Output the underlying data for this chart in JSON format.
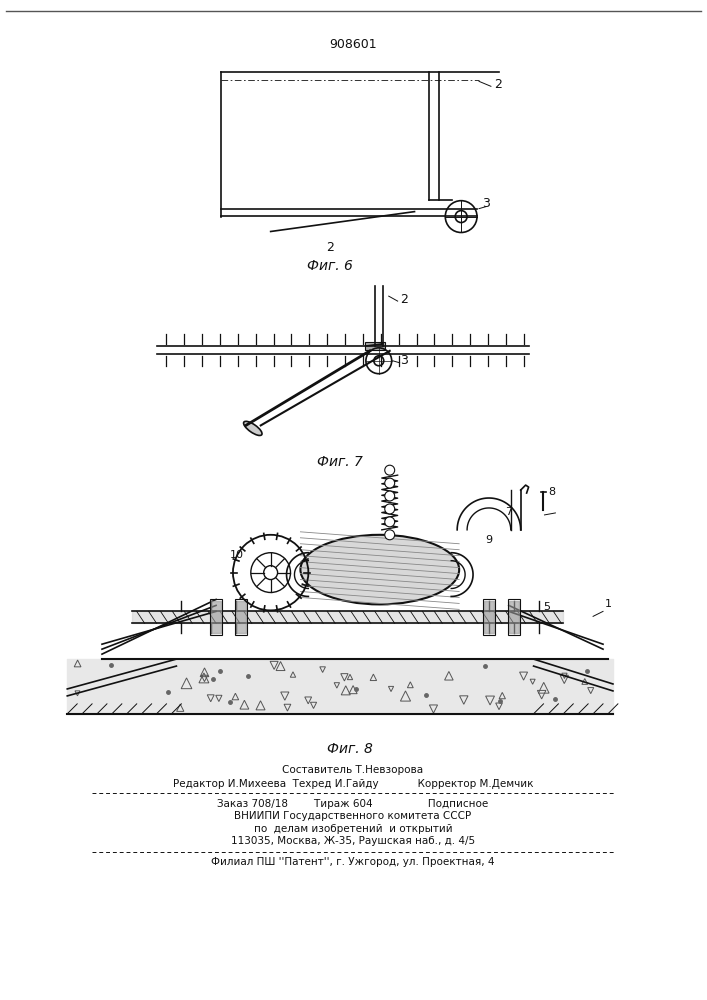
{
  "patent_number": "908601",
  "background_color": "#ffffff",
  "fig_color": "#111111",
  "page_width": 7.07,
  "page_height": 10.0,
  "patent_header": "908601",
  "footer_lines": [
    "Составитель Т.Невзорова",
    "Редактор И.Михеева  Техред И.Гайду            Корректор М.Демчик",
    "Заказ 708/18        Тираж 604                 Подписное",
    "ВНИИПИ Государственного комитета СССР",
    "по  делам изобретений  и открытий",
    "113035, Москва, Ж-35, Раушская наб., д. 4/5",
    "Филиал ПШ ''Патент'', г. Ужгород, ул. Проектная, 4"
  ],
  "fig6_caption": "Фиг. 6",
  "fig7_caption": "Фиг. 7",
  "fig8_caption": "Фиг. 8"
}
